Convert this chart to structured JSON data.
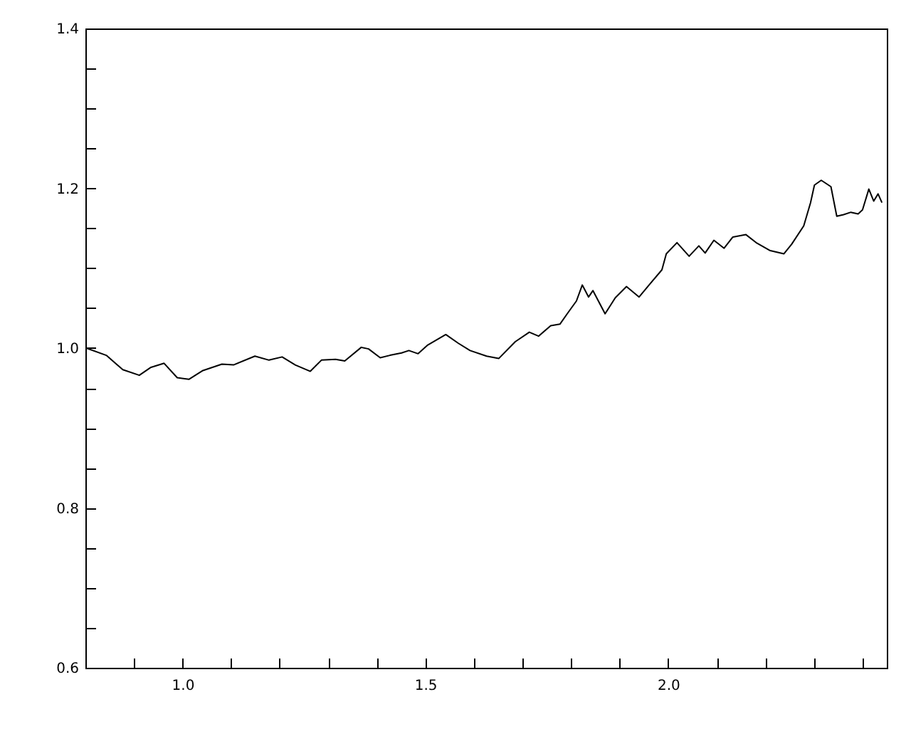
{
  "chart_data": {
    "type": "line",
    "grid": false,
    "marker": "none",
    "line_style": "solid",
    "xlim": [
      0.8,
      2.45
    ],
    "xticks": [
      {
        "value": 0.9,
        "label": null
      },
      {
        "value": 1,
        "label": "1.0"
      },
      {
        "value": 1.1,
        "label": null
      },
      {
        "value": 1.2,
        "label": null
      },
      {
        "value": 1.3,
        "label": null
      },
      {
        "value": 1.4,
        "label": null
      },
      1.5,
      {
        "value": 1.6,
        "label": null
      },
      {
        "value": 1.7,
        "label": null
      },
      {
        "value": 1.8,
        "label": null
      },
      {
        "value": 1.9,
        "label": null
      },
      {
        "value": 2,
        "label": "2.0"
      },
      {
        "value": 2.1,
        "label": null
      },
      {
        "value": 2.2,
        "label": null
      },
      {
        "value": 2.3,
        "label": null
      },
      {
        "value": 2.4,
        "label": null
      }
    ],
    "ylim": [
      0.6,
      1.4
    ],
    "yticks": [
      0.6,
      {
        "value": 0.65,
        "label": null
      },
      {
        "value": 0.7,
        "label": null
      },
      {
        "value": 0.75,
        "label": null
      },
      0.8,
      {
        "value": 0.85,
        "label": null
      },
      {
        "value": 0.9,
        "label": null
      },
      {
        "value": 0.95,
        "label": null
      },
      {
        "value": 1,
        "label": "1.0"
      },
      {
        "value": 1.05,
        "label": null
      },
      {
        "value": 1.1,
        "label": null
      },
      {
        "value": 1.15,
        "label": null
      },
      1.2,
      {
        "value": 1.25,
        "label": null
      },
      {
        "value": 1.3,
        "label": null
      },
      {
        "value": 1.35,
        "label": null
      },
      1.4
    ],
    "series": [
      {
        "color": "#000000",
        "x": [
          0.802,
          0.843,
          0.877,
          0.911,
          0.935,
          0.962,
          0.989,
          1.013,
          1.042,
          1.081,
          1.105,
          1.149,
          1.178,
          1.205,
          1.232,
          1.263,
          1.286,
          1.315,
          1.334,
          1.368,
          1.383,
          1.407,
          1.427,
          1.451,
          1.466,
          1.485,
          1.505,
          1.542,
          1.568,
          1.592,
          1.626,
          1.651,
          1.685,
          1.714,
          1.733,
          1.758,
          1.777,
          1.792,
          1.811,
          1.823,
          1.836,
          1.845,
          1.87,
          1.891,
          1.914,
          1.94,
          1.962,
          1.987,
          1.996,
          2.018,
          2.043,
          2.063,
          2.076,
          2.094,
          2.115,
          2.133,
          2.16,
          2.181,
          2.21,
          2.238,
          2.254,
          2.279,
          2.293,
          2.301,
          2.315,
          2.335,
          2.347,
          2.361,
          2.376,
          2.391,
          2.4,
          2.413,
          2.423,
          2.432,
          2.44
        ],
        "values": [
          1.0,
          0.991,
          0.973,
          0.966,
          0.976,
          0.981,
          0.963,
          0.961,
          0.972,
          0.98,
          0.979,
          0.99,
          0.985,
          0.989,
          0.979,
          0.971,
          0.985,
          0.986,
          0.984,
          1.001,
          0.999,
          0.988,
          0.991,
          0.994,
          0.997,
          0.993,
          1.004,
          1.017,
          1.006,
          0.997,
          0.99,
          0.987,
          1.008,
          1.02,
          1.015,
          1.028,
          1.03,
          1.043,
          1.059,
          1.079,
          1.064,
          1.072,
          1.043,
          1.063,
          1.077,
          1.064,
          1.08,
          1.098,
          1.118,
          1.132,
          1.115,
          1.128,
          1.119,
          1.135,
          1.125,
          1.139,
          1.142,
          1.132,
          1.122,
          1.118,
          1.13,
          1.153,
          1.182,
          1.204,
          1.21,
          1.202,
          1.165,
          1.167,
          1.17,
          1.168,
          1.173,
          1.199,
          1.184,
          1.193,
          1.182
        ]
      }
    ]
  }
}
